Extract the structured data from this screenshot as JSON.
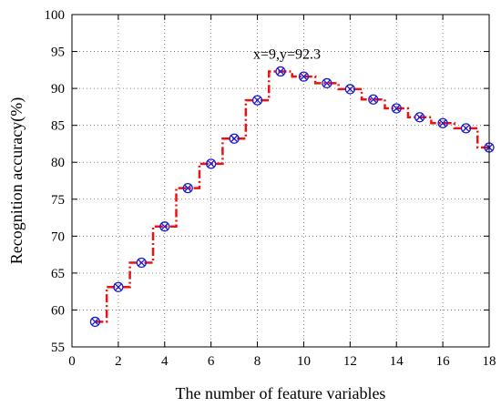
{
  "chart_data": {
    "type": "line",
    "xlabel": "The number of feature variables",
    "ylabel": "Recognition accuracy(%)",
    "xlim": [
      0,
      18
    ],
    "ylim": [
      55,
      100
    ],
    "x_ticks": [
      "0",
      "2",
      "4",
      "6",
      "8",
      "10",
      "12",
      "14",
      "16",
      "18"
    ],
    "y_ticks": [
      "55",
      "60",
      "65",
      "70",
      "75",
      "80",
      "85",
      "90",
      "95",
      "100"
    ],
    "grid": true,
    "series": [
      {
        "style": "dash-dot stairs with circle-cross markers",
        "color": "#ee1111",
        "marker_color": "#1c1cd4",
        "x": [
          1,
          2,
          3,
          4,
          5,
          6,
          7,
          8,
          9,
          10,
          11,
          12,
          13,
          14,
          15,
          16,
          17,
          18
        ],
        "y": [
          58.4,
          63.1,
          66.4,
          71.3,
          76.5,
          79.8,
          83.2,
          88.4,
          92.3,
          91.6,
          90.7,
          89.9,
          88.5,
          87.3,
          86.1,
          85.3,
          84.6,
          82.0
        ]
      }
    ],
    "annotation": {
      "text": "x=9,y=92.3",
      "x": 9,
      "y": 92.3
    }
  }
}
